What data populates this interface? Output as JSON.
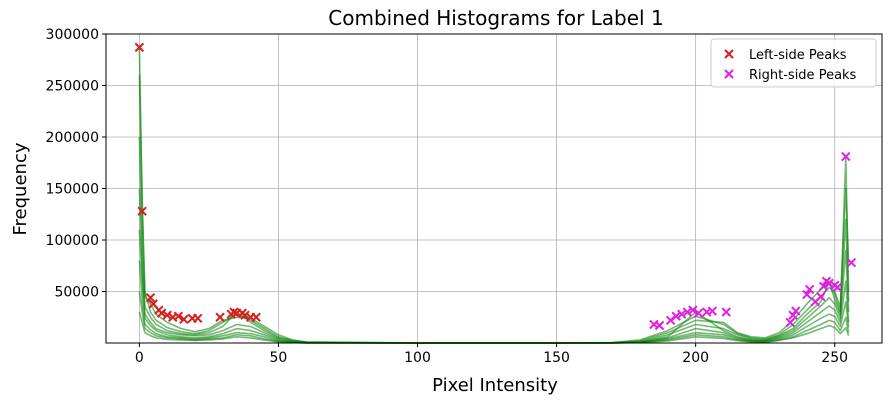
{
  "chart_data": {
    "type": "line",
    "title": "Combined Histograms for Label 1",
    "xlabel": "Pixel Intensity",
    "ylabel": "Frequency",
    "xlim": [
      -12,
      267
    ],
    "ylim": [
      0,
      300000
    ],
    "xticks": [
      0,
      50,
      100,
      150,
      200,
      250
    ],
    "yticks": [
      50000,
      100000,
      150000,
      200000,
      250000,
      300000
    ],
    "xtick_labels": [
      "0",
      "50",
      "100",
      "150",
      "200",
      "250"
    ],
    "ytick_labels": [
      "50000",
      "100000",
      "150000",
      "200000",
      "250000",
      "300000"
    ],
    "grid": true,
    "legend_position": "top-right",
    "line_color": "#008000",
    "series": [
      {
        "name": "Left-side Peaks",
        "kind": "scatter",
        "marker": "x",
        "color": "#d62020",
        "points": [
          [
            0,
            287000
          ],
          [
            1,
            128000
          ],
          [
            4,
            44000
          ],
          [
            5,
            38000
          ],
          [
            7,
            32000
          ],
          [
            8,
            29000
          ],
          [
            10,
            27000
          ],
          [
            12,
            25000
          ],
          [
            14,
            26000
          ],
          [
            16,
            23000
          ],
          [
            19,
            24000
          ],
          [
            21,
            24000
          ],
          [
            29,
            25000
          ],
          [
            33,
            28000
          ],
          [
            34,
            30000
          ],
          [
            35,
            29000
          ],
          [
            37,
            29000
          ],
          [
            38,
            27000
          ],
          [
            40,
            25000
          ],
          [
            42,
            25000
          ]
        ]
      },
      {
        "name": "Right-side Peaks",
        "kind": "scatter",
        "marker": "x",
        "color": "#e020e0",
        "points": [
          [
            185,
            18000
          ],
          [
            187,
            17000
          ],
          [
            191,
            22000
          ],
          [
            193,
            26000
          ],
          [
            195,
            28000
          ],
          [
            197,
            30000
          ],
          [
            199,
            32000
          ],
          [
            201,
            29000
          ],
          [
            204,
            30000
          ],
          [
            206,
            31000
          ],
          [
            211,
            30000
          ],
          [
            234,
            20000
          ],
          [
            235,
            27000
          ],
          [
            236,
            31000
          ],
          [
            240,
            47000
          ],
          [
            241,
            52000
          ],
          [
            243,
            40000
          ],
          [
            245,
            45000
          ],
          [
            246,
            55000
          ],
          [
            247,
            60000
          ],
          [
            248,
            58000
          ],
          [
            250,
            56000
          ],
          [
            251,
            54000
          ],
          [
            254,
            181000
          ],
          [
            256,
            78000
          ]
        ]
      }
    ],
    "histogram_profiles": [
      {
        "x": [
          0,
          1,
          2,
          4,
          6,
          10,
          15,
          20,
          25,
          30,
          35,
          40,
          45,
          50,
          55,
          60,
          100,
          150,
          170,
          180,
          190,
          200,
          210,
          215,
          220,
          225,
          230,
          235,
          240,
          245,
          248,
          250,
          252,
          254,
          255
        ],
        "y": [
          287000,
          140000,
          50000,
          30000,
          22000,
          15000,
          11000,
          9000,
          12000,
          20000,
          28000,
          22000,
          14000,
          6000,
          2500,
          1000,
          0,
          0,
          500,
          3000,
          12000,
          26000,
          18000,
          9000,
          5000,
          4000,
          8000,
          18000,
          32000,
          45000,
          54000,
          48000,
          30000,
          181000,
          50000
        ]
      },
      {
        "x": [
          0,
          1,
          2,
          4,
          6,
          10,
          15,
          20,
          25,
          30,
          35,
          40,
          45,
          50,
          55,
          60,
          100,
          150,
          170,
          180,
          190,
          200,
          210,
          215,
          220,
          225,
          230,
          235,
          240,
          245,
          248,
          250,
          252,
          254,
          255
        ],
        "y": [
          260000,
          128000,
          45000,
          38000,
          28000,
          20000,
          14000,
          11000,
          14000,
          22000,
          25000,
          24000,
          16000,
          8000,
          3000,
          1000,
          0,
          0,
          300,
          2000,
          10000,
          22000,
          20000,
          10000,
          6000,
          5000,
          10000,
          22000,
          38000,
          52000,
          58000,
          50000,
          35000,
          150000,
          78000
        ]
      },
      {
        "x": [
          0,
          1,
          2,
          4,
          6,
          10,
          15,
          20,
          25,
          30,
          35,
          40,
          45,
          50,
          55,
          60,
          100,
          150,
          170,
          180,
          190,
          200,
          210,
          215,
          220,
          225,
          230,
          235,
          240,
          245,
          248,
          250,
          252,
          254,
          255
        ],
        "y": [
          200000,
          90000,
          35000,
          25000,
          18000,
          12000,
          9000,
          8000,
          10000,
          16000,
          30000,
          20000,
          12000,
          5000,
          2000,
          500,
          0,
          0,
          200,
          1500,
          8000,
          18000,
          14000,
          8000,
          4000,
          3000,
          7000,
          14000,
          28000,
          40000,
          60000,
          42000,
          28000,
          120000,
          40000
        ]
      },
      {
        "x": [
          0,
          1,
          2,
          4,
          6,
          10,
          15,
          20,
          25,
          30,
          35,
          40,
          45,
          50,
          55,
          60,
          100,
          150,
          170,
          180,
          190,
          200,
          210,
          215,
          220,
          225,
          230,
          235,
          240,
          245,
          248,
          250,
          252,
          254,
          255
        ],
        "y": [
          150000,
          70000,
          28000,
          20000,
          14000,
          10000,
          8000,
          7000,
          8000,
          12000,
          18000,
          16000,
          10000,
          4000,
          1500,
          400,
          0,
          0,
          200,
          1000,
          6000,
          30000,
          12000,
          6000,
          3000,
          2500,
          6000,
          12000,
          24000,
          36000,
          44000,
          38000,
          24000,
          90000,
          30000
        ]
      },
      {
        "x": [
          0,
          1,
          2,
          4,
          6,
          10,
          15,
          20,
          25,
          30,
          35,
          40,
          45,
          50,
          55,
          60,
          100,
          150,
          170,
          180,
          190,
          200,
          210,
          215,
          220,
          225,
          230,
          235,
          240,
          245,
          248,
          250,
          252,
          254,
          255
        ],
        "y": [
          110000,
          60000,
          24000,
          17000,
          12000,
          8000,
          6000,
          5000,
          6000,
          9000,
          14000,
          12000,
          8000,
          3000,
          1000,
          300,
          0,
          0,
          100,
          800,
          5000,
          14000,
          10000,
          5000,
          2500,
          2000,
          5000,
          10000,
          20000,
          30000,
          36000,
          32000,
          20000,
          60000,
          20000
        ]
      },
      {
        "x": [
          0,
          1,
          2,
          4,
          6,
          10,
          15,
          20,
          25,
          30,
          35,
          40,
          45,
          50,
          55,
          60,
          100,
          150,
          170,
          180,
          190,
          200,
          210,
          215,
          220,
          225,
          230,
          235,
          240,
          245,
          248,
          250,
          252,
          254,
          255
        ],
        "y": [
          80000,
          40000,
          18000,
          13000,
          9000,
          6000,
          5000,
          4000,
          5000,
          7000,
          10000,
          9000,
          6000,
          2000,
          800,
          200,
          0,
          0,
          100,
          600,
          4000,
          10000,
          8000,
          4000,
          2000,
          1500,
          4000,
          8000,
          16000,
          24000,
          28000,
          26000,
          16000,
          40000,
          15000
        ]
      },
      {
        "x": [
          0,
          1,
          2,
          4,
          6,
          10,
          15,
          20,
          25,
          30,
          35,
          40,
          45,
          50,
          55,
          60,
          100,
          150,
          170,
          180,
          190,
          200,
          210,
          215,
          220,
          225,
          230,
          235,
          240,
          245,
          248,
          250,
          252,
          254,
          255
        ],
        "y": [
          50000,
          30000,
          14000,
          10000,
          7000,
          5000,
          4000,
          3000,
          4000,
          5000,
          8000,
          7000,
          4000,
          1500,
          500,
          100,
          0,
          0,
          100,
          500,
          3000,
          8000,
          6000,
          3000,
          1500,
          1000,
          3000,
          6000,
          12000,
          18000,
          22000,
          20000,
          12000,
          25000,
          10000
        ]
      },
      {
        "x": [
          0,
          1,
          2,
          4,
          6,
          10,
          15,
          20,
          25,
          30,
          35,
          40,
          45,
          50,
          55,
          60,
          100,
          150,
          170,
          180,
          190,
          200,
          210,
          215,
          220,
          225,
          230,
          235,
          240,
          245,
          248,
          250,
          252,
          254,
          255
        ],
        "y": [
          30000,
          20000,
          10000,
          7000,
          5000,
          3500,
          3000,
          2500,
          3000,
          4000,
          6000,
          5000,
          3000,
          1000,
          400,
          100,
          0,
          0,
          50,
          400,
          2000,
          6000,
          4500,
          2200,
          1200,
          800,
          2500,
          5000,
          9000,
          14000,
          17000,
          15000,
          9000,
          15000,
          7000
        ]
      }
    ]
  }
}
